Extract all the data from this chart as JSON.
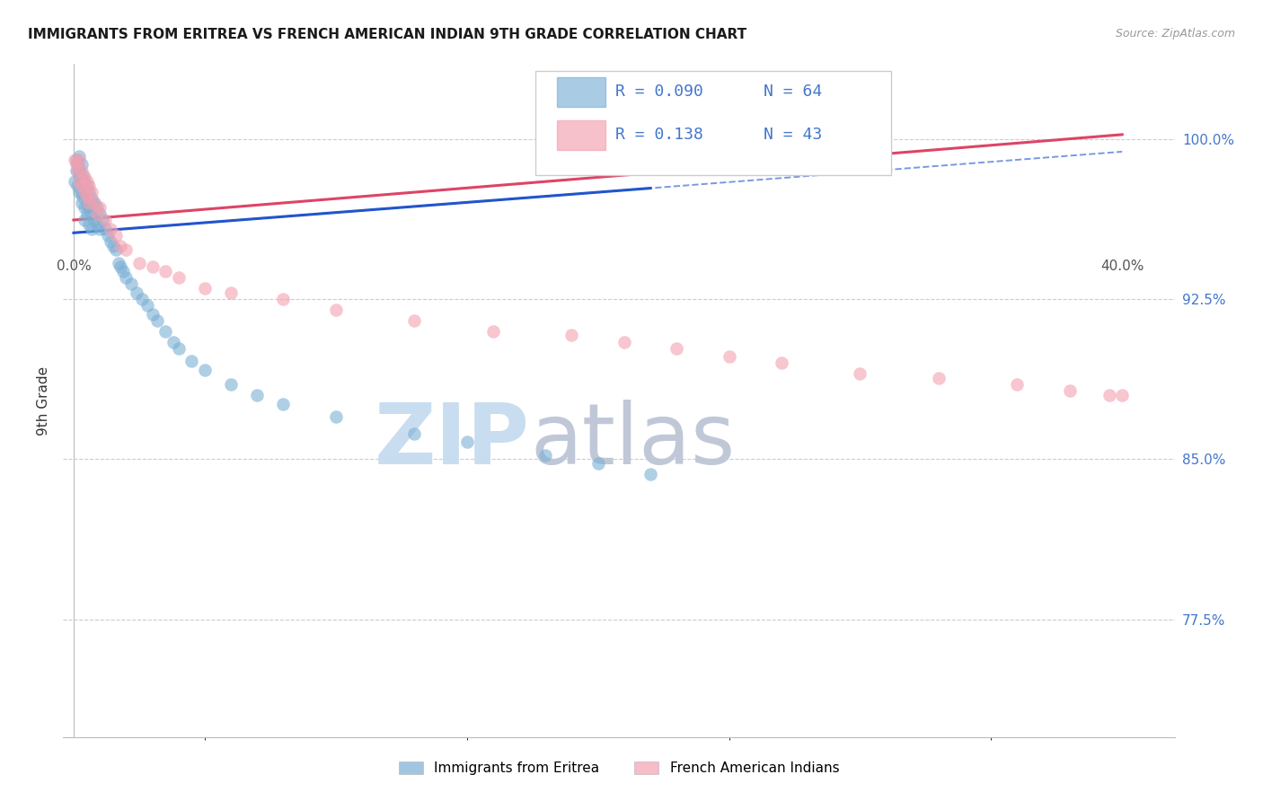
{
  "title": "IMMIGRANTS FROM ERITREA VS FRENCH AMERICAN INDIAN 9TH GRADE CORRELATION CHART",
  "source": "Source: ZipAtlas.com",
  "ylabel": "9th Grade",
  "ylim": [
    0.72,
    1.035
  ],
  "xlim": [
    -0.004,
    0.42
  ],
  "r_blue": 0.09,
  "n_blue": 64,
  "r_pink": 0.138,
  "n_pink": 43,
  "blue_color": "#7bafd4",
  "pink_color": "#f4a0b0",
  "trend_blue": "#2255cc",
  "trend_pink": "#dd4466",
  "legend_label_blue": "Immigrants from Eritrea",
  "legend_label_pink": "French American Indians",
  "blue_scatter_x": [
    0.0005,
    0.001,
    0.001,
    0.0015,
    0.0015,
    0.002,
    0.002,
    0.002,
    0.0025,
    0.003,
    0.003,
    0.003,
    0.003,
    0.0035,
    0.0035,
    0.004,
    0.004,
    0.004,
    0.004,
    0.005,
    0.005,
    0.005,
    0.006,
    0.006,
    0.006,
    0.007,
    0.007,
    0.007,
    0.008,
    0.008,
    0.009,
    0.009,
    0.01,
    0.01,
    0.011,
    0.012,
    0.013,
    0.014,
    0.015,
    0.016,
    0.017,
    0.018,
    0.019,
    0.02,
    0.022,
    0.024,
    0.026,
    0.028,
    0.03,
    0.032,
    0.035,
    0.038,
    0.04,
    0.045,
    0.05,
    0.06,
    0.07,
    0.08,
    0.1,
    0.13,
    0.15,
    0.18,
    0.2,
    0.22
  ],
  "blue_scatter_y": [
    0.98,
    0.99,
    0.985,
    0.988,
    0.978,
    0.992,
    0.985,
    0.975,
    0.982,
    0.988,
    0.98,
    0.975,
    0.97,
    0.983,
    0.973,
    0.98,
    0.975,
    0.968,
    0.962,
    0.978,
    0.97,
    0.965,
    0.975,
    0.968,
    0.96,
    0.972,
    0.965,
    0.958,
    0.97,
    0.962,
    0.968,
    0.96,
    0.965,
    0.958,
    0.962,
    0.958,
    0.955,
    0.952,
    0.95,
    0.948,
    0.942,
    0.94,
    0.938,
    0.935,
    0.932,
    0.928,
    0.925,
    0.922,
    0.918,
    0.915,
    0.91,
    0.905,
    0.902,
    0.896,
    0.892,
    0.885,
    0.88,
    0.876,
    0.87,
    0.862,
    0.858,
    0.852,
    0.848,
    0.843
  ],
  "pink_scatter_x": [
    0.0005,
    0.001,
    0.0015,
    0.002,
    0.002,
    0.003,
    0.003,
    0.004,
    0.004,
    0.005,
    0.005,
    0.006,
    0.006,
    0.007,
    0.008,
    0.009,
    0.01,
    0.012,
    0.014,
    0.016,
    0.018,
    0.02,
    0.025,
    0.03,
    0.035,
    0.04,
    0.05,
    0.06,
    0.08,
    0.1,
    0.13,
    0.16,
    0.19,
    0.21,
    0.23,
    0.25,
    0.27,
    0.3,
    0.33,
    0.36,
    0.38,
    0.395,
    0.4
  ],
  "pink_scatter_y": [
    0.99,
    0.988,
    0.985,
    0.99,
    0.98,
    0.985,
    0.978,
    0.982,
    0.975,
    0.98,
    0.973,
    0.978,
    0.97,
    0.975,
    0.97,
    0.965,
    0.968,
    0.962,
    0.958,
    0.955,
    0.95,
    0.948,
    0.942,
    0.94,
    0.938,
    0.935,
    0.93,
    0.928,
    0.925,
    0.92,
    0.915,
    0.91,
    0.908,
    0.905,
    0.902,
    0.898,
    0.895,
    0.89,
    0.888,
    0.885,
    0.882,
    0.88,
    0.88
  ],
  "watermark_zip": "ZIP",
  "watermark_atlas": "atlas",
  "watermark_color_zip": "#c8ddf0",
  "watermark_color_atlas": "#c0c8d8"
}
